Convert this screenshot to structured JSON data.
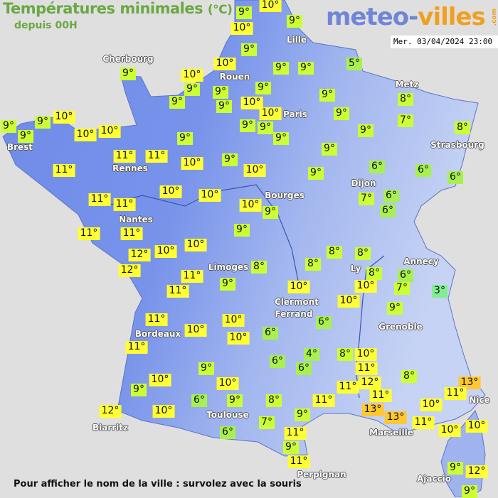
{
  "header": {
    "title": "Températures minimales",
    "unit": "(°C)",
    "subtitle": "depuis 00H"
  },
  "logo": {
    "part1": "meteo-",
    "part2": "villes",
    "tld": ".com"
  },
  "datetime": "Mer. 03/04/2024 23:00",
  "footer": "Pour afficher le nom de la ville : survolez avec la souris",
  "colors": {
    "sea": "#e0dfdf",
    "land_west": "#6f8be8",
    "land_east": "#a9bdf0",
    "temp_10_plus": "#ffff33",
    "temp_7_9": "#ccff33",
    "temp_4_6": "#a8f050",
    "temp_3": "#80ee90",
    "temp_13": "#ffc830"
  },
  "cities": [
    "Cherbourg",
    "Lille",
    "Rouen",
    "Paris",
    "Metz",
    "Strasbourg",
    "Brest",
    "Rennes",
    "Nantes",
    "Dijon",
    "Bourges",
    "Limoges",
    "Annecy",
    "Ly",
    "Clermont",
    "Ferrand",
    "Grenoble",
    "Bordeaux",
    "Nice",
    "Toulouse",
    "Biarritz",
    "Marseille",
    "Perpignan",
    "Ajaccio"
  ],
  "temperatures": [
    "9°",
    "10°",
    "10°",
    "9°",
    "9°",
    "10°",
    "9°",
    "9°",
    "5°",
    "9°",
    "10°",
    "9°",
    "9°",
    "9°",
    "9°",
    "10°",
    "9°",
    "10°",
    "9°",
    "9°",
    "9°",
    "9°",
    "9°",
    "9°",
    "8°",
    "7°",
    "8°",
    "9°",
    "9°",
    "9°",
    "10°",
    "10°",
    "10°",
    "9°",
    "11°",
    "11°",
    "10°",
    "9°",
    "9°",
    "10°",
    "9°",
    "6°",
    "6°",
    "6°",
    "11°",
    "10°",
    "10°",
    "11°",
    "11°",
    "7°",
    "6°",
    "6°",
    "10°",
    "9°",
    "9°",
    "11°",
    "11°",
    "12°",
    "10°",
    "10°",
    "12°",
    "8°",
    "8°",
    "8°",
    "8°",
    "8°",
    "6°",
    "7°",
    "3°",
    "10°",
    "11°",
    "9°",
    "11°",
    "10°",
    "10°",
    "9°",
    "11°",
    "10°",
    "6°",
    "10°",
    "10°",
    "6°",
    "11°",
    "4°",
    "8°",
    "10°",
    "6°",
    "6°",
    "11°",
    "8°",
    "13°",
    "9°",
    "10°",
    "10°",
    "12°",
    "11°",
    "9°",
    "11°",
    "6°",
    "9°",
    "8°",
    "11°",
    "11°",
    "13°",
    "13°",
    "10°",
    "12°",
    "10°",
    "7°",
    "9°",
    "11°",
    "10°",
    "10°",
    "6°",
    "11°",
    "9°",
    "11°",
    "9°",
    "12°",
    "9°"
  ]
}
